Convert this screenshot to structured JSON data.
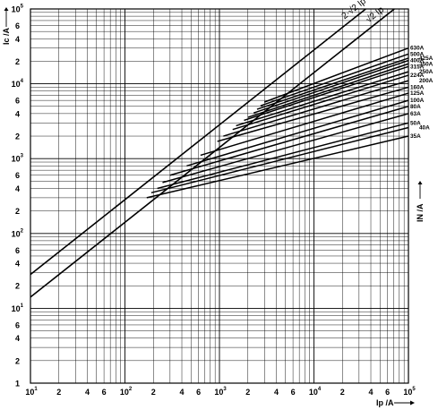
{
  "chart_data": {
    "type": "line",
    "x_scale": "log",
    "y_scale": "log",
    "xlim": [
      10,
      100000
    ],
    "ylim": [
      1,
      100000
    ],
    "grid": true,
    "xlabel": "Ip /A",
    "ylabel_left": "Ic /A",
    "ylabel_right": "IN /A",
    "x_ticks": [
      {
        "base": "10",
        "exp": "1",
        "value": 10
      },
      {
        "base": "2",
        "exp": "",
        "value": 20
      },
      {
        "base": "4",
        "exp": "",
        "value": 40
      },
      {
        "base": "6",
        "exp": "",
        "value": 60
      },
      {
        "base": "10",
        "exp": "2",
        "value": 100
      },
      {
        "base": "2",
        "exp": "",
        "value": 200
      },
      {
        "base": "4",
        "exp": "",
        "value": 400
      },
      {
        "base": "6",
        "exp": "",
        "value": 600
      },
      {
        "base": "10",
        "exp": "3",
        "value": 1000
      },
      {
        "base": "2",
        "exp": "",
        "value": 2000
      },
      {
        "base": "4",
        "exp": "",
        "value": 4000
      },
      {
        "base": "6",
        "exp": "",
        "value": 6000
      },
      {
        "base": "10",
        "exp": "4",
        "value": 10000
      },
      {
        "base": "2",
        "exp": "",
        "value": 20000
      },
      {
        "base": "4",
        "exp": "",
        "value": 40000
      },
      {
        "base": "6",
        "exp": "",
        "value": 60000
      },
      {
        "base": "10",
        "exp": "5",
        "value": 100000
      }
    ],
    "y_ticks": [
      {
        "base": "1",
        "exp": "",
        "value": 1
      },
      {
        "base": "2",
        "exp": "",
        "value": 2
      },
      {
        "base": "4",
        "exp": "",
        "value": 4
      },
      {
        "base": "6",
        "exp": "",
        "value": 6
      },
      {
        "base": "10",
        "exp": "1",
        "value": 10
      },
      {
        "base": "2",
        "exp": "",
        "value": 20
      },
      {
        "base": "4",
        "exp": "",
        "value": 40
      },
      {
        "base": "6",
        "exp": "",
        "value": 60
      },
      {
        "base": "10",
        "exp": "2",
        "value": 100
      },
      {
        "base": "2",
        "exp": "",
        "value": 200
      },
      {
        "base": "4",
        "exp": "",
        "value": 400
      },
      {
        "base": "6",
        "exp": "",
        "value": 600
      },
      {
        "base": "10",
        "exp": "3",
        "value": 1000
      },
      {
        "base": "2",
        "exp": "",
        "value": 2000
      },
      {
        "base": "4",
        "exp": "",
        "value": 4000
      },
      {
        "base": "6",
        "exp": "",
        "value": 6000
      },
      {
        "base": "10",
        "exp": "4",
        "value": 10000
      },
      {
        "base": "2",
        "exp": "",
        "value": 20000
      },
      {
        "base": "4",
        "exp": "",
        "value": 40000
      },
      {
        "base": "6",
        "exp": "",
        "value": 60000
      },
      {
        "base": "10",
        "exp": "5",
        "value": 100000
      }
    ],
    "diagonals": [
      {
        "label": "2·√2 Ip",
        "factor": 2.83
      },
      {
        "label": "√2 Ip",
        "factor": 1.41
      }
    ],
    "series": [
      {
        "name": "630A",
        "x_start": 3000,
        "y_start": 5700,
        "y_end": 30000
      },
      {
        "name": "500A",
        "x_start": 2720,
        "y_start": 5080,
        "y_end": 25000
      },
      {
        "name": "425A",
        "x_start": 2500,
        "y_start": 4570,
        "y_end": 22000
      },
      {
        "name": "400A",
        "x_start": 2300,
        "y_start": 4080,
        "y_end": 20500
      },
      {
        "name": "350A",
        "x_start": 2000,
        "y_start": 3560,
        "y_end": 18500
      },
      {
        "name": "315A",
        "x_start": 1820,
        "y_start": 3250,
        "y_end": 17000
      },
      {
        "name": "250A",
        "x_start": 1500,
        "y_start": 2750,
        "y_end": 14500
      },
      {
        "name": "224A",
        "x_start": 1380,
        "y_start": 2450,
        "y_end": 13000
      },
      {
        "name": "200A",
        "x_start": 1100,
        "y_start": 2000,
        "y_end": 11000
      },
      {
        "name": "160A",
        "x_start": 950,
        "y_start": 1700,
        "y_end": 9000
      },
      {
        "name": "125A",
        "x_start": 630,
        "y_start": 1110,
        "y_end": 7500
      },
      {
        "name": "100A",
        "x_start": 450,
        "y_start": 800,
        "y_end": 6000
      },
      {
        "name": "80A",
        "x_start": 300,
        "y_start": 600,
        "y_end": 5000
      },
      {
        "name": "63A",
        "x_start": 250,
        "y_start": 480,
        "y_end": 4000
      },
      {
        "name": "50A",
        "x_start": 220,
        "y_start": 400,
        "y_end": 3000
      },
      {
        "name": "40A",
        "x_start": 190,
        "y_start": 350,
        "y_end": 2600
      },
      {
        "name": "35A",
        "x_start": 170,
        "y_start": 300,
        "y_end": 2000
      }
    ]
  }
}
